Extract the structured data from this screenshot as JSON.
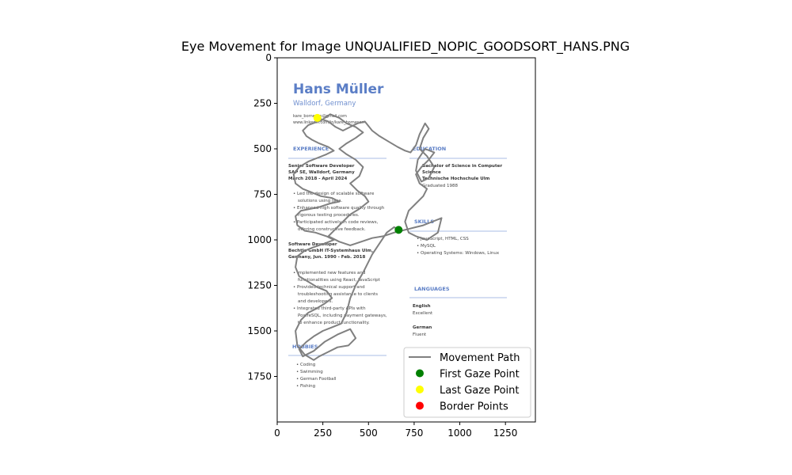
{
  "chart_data": {
    "type": "line",
    "title": "Eye Movement for Image UNQUALIFIED_NOPIC_GOODSORT_HANS.PNG",
    "xlabel": "",
    "ylabel": "",
    "xlim": [
      0,
      1414
    ],
    "ylim": [
      2000,
      0
    ],
    "xticks": [
      0,
      250,
      500,
      750,
      1000,
      1250
    ],
    "yticks": [
      0,
      250,
      500,
      750,
      1000,
      1250,
      1500,
      1750
    ],
    "grid": false,
    "legend_position": "lower-right",
    "legend": [
      {
        "label": "Movement Path",
        "kind": "line",
        "color": "#808080"
      },
      {
        "label": "First Gaze Point",
        "kind": "marker",
        "color": "#008000"
      },
      {
        "label": "Last Gaze Point",
        "kind": "marker",
        "color": "#ffff00"
      },
      {
        "label": "Border Points",
        "kind": "marker",
        "color": "#ff0000"
      }
    ],
    "first_gaze_point": {
      "x": 665,
      "y": 945
    },
    "last_gaze_point": {
      "x": 220,
      "y": 330
    },
    "border_points": [],
    "movement_path": [
      [
        665,
        945
      ],
      [
        640,
        930
      ],
      [
        600,
        960
      ],
      [
        520,
        1080
      ],
      [
        470,
        1180
      ],
      [
        430,
        1250
      ],
      [
        400,
        1320
      ],
      [
        380,
        1400
      ],
      [
        350,
        1460
      ],
      [
        300,
        1480
      ],
      [
        250,
        1500
      ],
      [
        200,
        1530
      ],
      [
        160,
        1560
      ],
      [
        120,
        1600
      ],
      [
        140,
        1640
      ],
      [
        200,
        1610
      ],
      [
        260,
        1560
      ],
      [
        330,
        1520
      ],
      [
        400,
        1490
      ],
      [
        430,
        1540
      ],
      [
        390,
        1580
      ],
      [
        330,
        1590
      ],
      [
        270,
        1620
      ],
      [
        230,
        1640
      ],
      [
        200,
        1660
      ],
      [
        150,
        1630
      ],
      [
        110,
        1580
      ],
      [
        100,
        1500
      ],
      [
        130,
        1440
      ],
      [
        170,
        1400
      ],
      [
        210,
        1380
      ],
      [
        260,
        1350
      ],
      [
        300,
        1320
      ],
      [
        270,
        1280
      ],
      [
        220,
        1260
      ],
      [
        170,
        1230
      ],
      [
        120,
        1200
      ],
      [
        100,
        1150
      ],
      [
        110,
        1090
      ],
      [
        150,
        1060
      ],
      [
        200,
        1040
      ],
      [
        260,
        1020
      ],
      [
        310,
        1000
      ],
      [
        270,
        980
      ],
      [
        210,
        960
      ],
      [
        150,
        950
      ],
      [
        110,
        920
      ],
      [
        100,
        870
      ],
      [
        130,
        840
      ],
      [
        180,
        830
      ],
      [
        230,
        820
      ],
      [
        290,
        800
      ],
      [
        340,
        790
      ],
      [
        300,
        770
      ],
      [
        240,
        760
      ],
      [
        190,
        740
      ],
      [
        140,
        720
      ],
      [
        100,
        690
      ],
      [
        90,
        640
      ],
      [
        120,
        600
      ],
      [
        170,
        570
      ],
      [
        220,
        550
      ],
      [
        270,
        530
      ],
      [
        310,
        510
      ],
      [
        280,
        490
      ],
      [
        230,
        470
      ],
      [
        190,
        450
      ],
      [
        160,
        430
      ],
      [
        140,
        400
      ],
      [
        170,
        370
      ],
      [
        210,
        355
      ],
      [
        240,
        345
      ],
      [
        290,
        310
      ],
      [
        340,
        330
      ],
      [
        380,
        360
      ],
      [
        430,
        380
      ],
      [
        470,
        410
      ],
      [
        430,
        440
      ],
      [
        380,
        470
      ],
      [
        340,
        500
      ],
      [
        380,
        530
      ],
      [
        430,
        560
      ],
      [
        470,
        600
      ],
      [
        450,
        650
      ],
      [
        400,
        690
      ],
      [
        440,
        730
      ],
      [
        480,
        760
      ],
      [
        500,
        790
      ],
      [
        450,
        830
      ],
      [
        400,
        860
      ],
      [
        360,
        900
      ],
      [
        320,
        940
      ],
      [
        280,
        980
      ],
      [
        340,
        1010
      ],
      [
        400,
        1030
      ],
      [
        460,
        1010
      ],
      [
        520,
        990
      ],
      [
        580,
        980
      ],
      [
        640,
        960
      ],
      [
        680,
        950
      ],
      [
        720,
        940
      ],
      [
        760,
        930
      ],
      [
        800,
        920
      ],
      [
        850,
        900
      ],
      [
        900,
        880
      ],
      [
        880,
        960
      ],
      [
        820,
        1000
      ],
      [
        760,
        980
      ],
      [
        720,
        960
      ],
      [
        700,
        900
      ],
      [
        720,
        840
      ],
      [
        760,
        800
      ],
      [
        800,
        760
      ],
      [
        820,
        720
      ],
      [
        780,
        690
      ],
      [
        760,
        640
      ],
      [
        790,
        600
      ],
      [
        830,
        560
      ],
      [
        860,
        520
      ],
      [
        810,
        500
      ],
      [
        770,
        560
      ],
      [
        760,
        620
      ],
      [
        790,
        680
      ],
      [
        830,
        660
      ],
      [
        860,
        600
      ],
      [
        820,
        540
      ],
      [
        780,
        500
      ],
      [
        800,
        440
      ],
      [
        830,
        390
      ],
      [
        810,
        360
      ],
      [
        780,
        420
      ],
      [
        760,
        480
      ],
      [
        730,
        520
      ],
      [
        700,
        510
      ],
      [
        660,
        490
      ],
      [
        610,
        460
      ],
      [
        560,
        430
      ],
      [
        520,
        400
      ],
      [
        480,
        350
      ],
      [
        440,
        360
      ],
      [
        400,
        380
      ],
      [
        360,
        400
      ],
      [
        320,
        380
      ],
      [
        280,
        350
      ],
      [
        250,
        340
      ],
      [
        220,
        330
      ]
    ]
  }
}
